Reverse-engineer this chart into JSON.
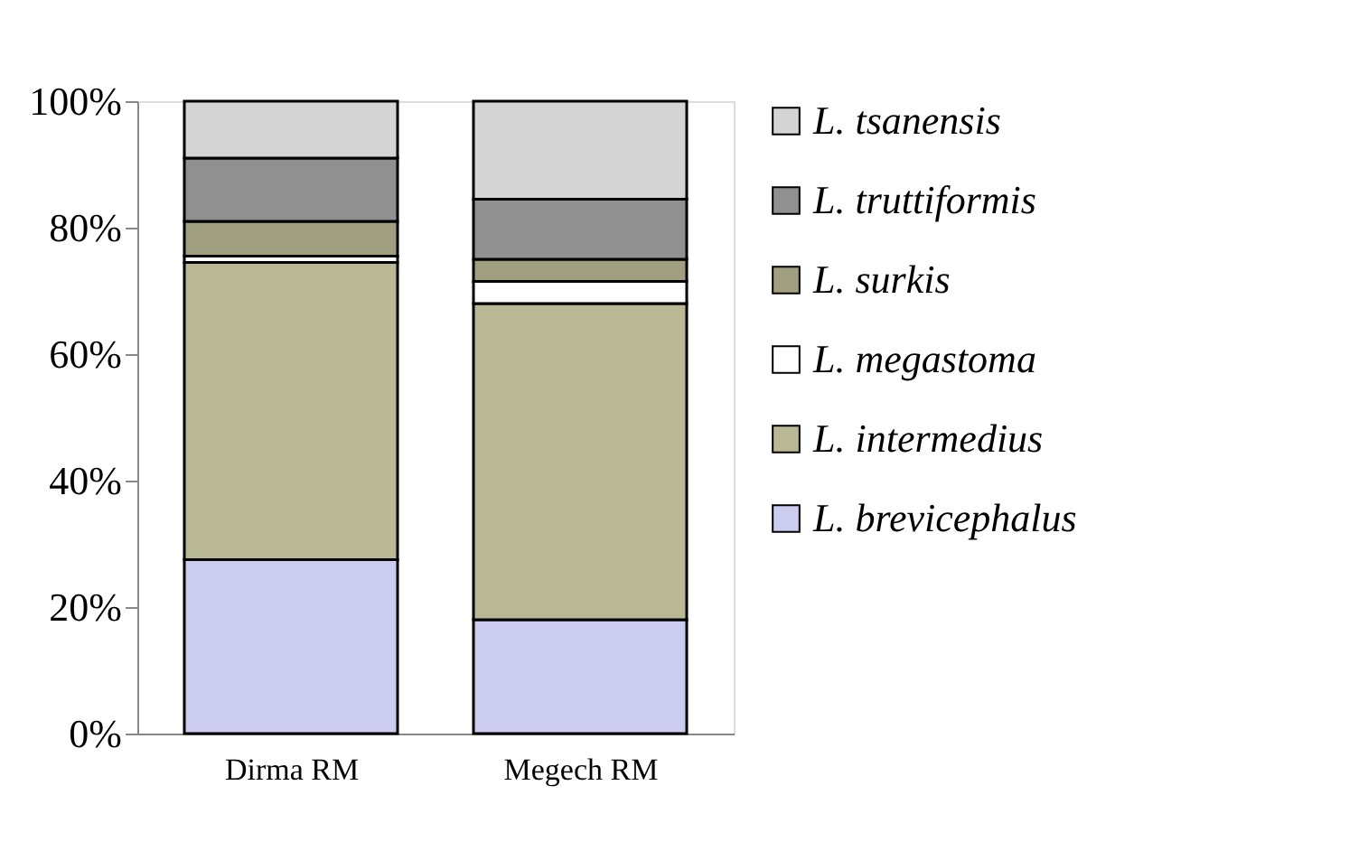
{
  "chart_data": {
    "type": "bar",
    "stacked": true,
    "categories": [
      "Dirma RM",
      "Megech RM"
    ],
    "series": [
      {
        "name": "L. brevicephalus",
        "color": "#ccccf0",
        "values": [
          27.5,
          18
        ]
      },
      {
        "name": "L. intermedius",
        "color": "#b8b894",
        "values": [
          47,
          50
        ]
      },
      {
        "name": "L. megastoma",
        "color": "#ffffff",
        "values": [
          1,
          3.5
        ]
      },
      {
        "name": "L. surkis",
        "color": "#a0a080",
        "values": [
          5.5,
          3.5
        ]
      },
      {
        "name": "L. truttiformis",
        "color": "#909090",
        "values": [
          10,
          9.5
        ]
      },
      {
        "name": "L. tsanensis",
        "color": "#d4d4d4",
        "values": [
          9,
          15.5
        ]
      }
    ],
    "ylim": [
      0,
      100
    ],
    "yticks": [
      {
        "value": 0,
        "label": "0%"
      },
      {
        "value": 20,
        "label": "20%"
      },
      {
        "value": 40,
        "label": "40%"
      },
      {
        "value": 60,
        "label": "60%"
      },
      {
        "value": 80,
        "label": "80%"
      },
      {
        "value": 100,
        "label": "100%"
      }
    ],
    "grid": false,
    "legend": "right"
  }
}
